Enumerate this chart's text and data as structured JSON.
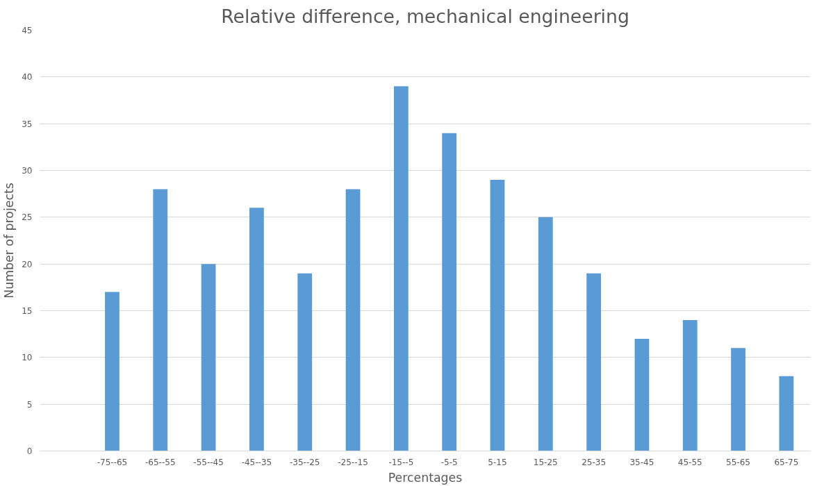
{
  "chart_data": {
    "type": "bar",
    "title": "Relative difference, mechanical engineering",
    "xlabel": "Percentages",
    "ylabel": "Number of projects",
    "categories": [
      null,
      "-75--65",
      "-65--55",
      "-55--45",
      "-45--35",
      "-35--25",
      "-25--15",
      "-15--5",
      "-5-5",
      "5-15",
      "15-25",
      "25-35",
      "35-45",
      "45-55",
      "55-65",
      "65-75"
    ],
    "values": [
      null,
      17,
      28,
      20,
      26,
      19,
      28,
      39,
      34,
      29,
      25,
      19,
      12,
      14,
      11,
      8
    ],
    "color": "#5b9bd5",
    "ylim": [
      0,
      45
    ],
    "yticks": [
      0,
      5,
      10,
      15,
      20,
      25,
      30,
      35,
      40,
      45
    ],
    "grid": "y"
  }
}
